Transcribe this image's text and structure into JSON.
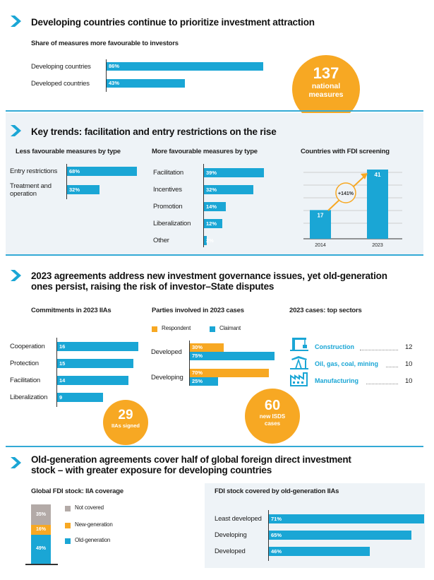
{
  "colors": {
    "accent": "#1aa6d5",
    "orange": "#f7a823",
    "grey": "#b3aaa7",
    "panel": "#eef3f7"
  },
  "s1": {
    "title": "Developing countries continue to prioritize investment attraction",
    "subtitle": "Share of measures more favourable to investors",
    "rows": [
      {
        "label": "Developing countries",
        "value": 86,
        "text": "86%"
      },
      {
        "label": "Developed countries",
        "value": 43,
        "text": "43%"
      }
    ],
    "badge_number": "137",
    "badge_line1": "national",
    "badge_line2": "measures"
  },
  "s2": {
    "title": "Key trends: facilitation and entry restrictions on the rise",
    "less": {
      "title": "Less favourable measures by type",
      "rows": [
        {
          "label": "Entry restrictions",
          "value": 68,
          "text": "68%"
        },
        {
          "label1": "Treatment and",
          "label2": "operation",
          "value": 32,
          "text": "32%"
        }
      ]
    },
    "more": {
      "title": "More favourable measures by type",
      "rows": [
        {
          "label": "Facilitation",
          "value": 39,
          "text": "39%"
        },
        {
          "label": "Incentives",
          "value": 32,
          "text": "32%"
        },
        {
          "label": "Promotion",
          "value": 14,
          "text": "14%"
        },
        {
          "label": "Liberalization",
          "value": 12,
          "text": "12%"
        },
        {
          "label": "Other",
          "value": 2,
          "text": "2%"
        }
      ]
    },
    "screening": {
      "title": "Countries with FDI screening",
      "growth": "+141%",
      "bars": [
        {
          "year": "2014",
          "value": 17,
          "text": "17"
        },
        {
          "year": "2023",
          "value": 41,
          "text": "41"
        }
      ]
    }
  },
  "s3": {
    "title_line1": "2023 agreements address new investment governance issues, yet old-generation",
    "title_line2": "ones persist, raising the risk of investor–State disputes",
    "commitments": {
      "title": "Commitments in 2023 IIAs",
      "rows": [
        {
          "label": "Cooperation",
          "value": 16,
          "text": "16"
        },
        {
          "label": "Protection",
          "value": 15,
          "text": "15"
        },
        {
          "label": "Facilitation",
          "value": 14,
          "text": "14"
        },
        {
          "label": "Liberalization",
          "value": 9,
          "text": "9"
        }
      ],
      "badge_number": "29",
      "badge_text": "IIAs signed"
    },
    "parties": {
      "title": "Parties involved in 2023 cases",
      "legend_respondent": "Respondent",
      "legend_claimant": "Claimant",
      "groups": [
        {
          "label": "Developed",
          "respondent": 30,
          "respondent_text": "30%",
          "claimant": 75,
          "claimant_text": "75%"
        },
        {
          "label": "Developing",
          "respondent": 70,
          "respondent_text": "70%",
          "claimant": 25,
          "claimant_text": "25%"
        }
      ],
      "badge_number": "60",
      "badge_line1": "new ISDS",
      "badge_line2": "cases"
    },
    "sectors": {
      "title": "2023 cases: top sectors",
      "rows": [
        {
          "label": "Construction",
          "value": "12",
          "icon": "crane-icon"
        },
        {
          "label": "Oil, gas, coal, mining",
          "value": "10",
          "icon": "oil-pump-icon"
        },
        {
          "label": "Manufacturing",
          "value": "10",
          "icon": "factory-icon"
        }
      ]
    }
  },
  "s4": {
    "title_line1": "Old-generation agreements cover half of global foreign direct investment",
    "title_line2": "stock – with greater exposure for developing countries",
    "stock": {
      "title": "Global FDI stock: IIA coverage",
      "segments": [
        {
          "name": "Not covered",
          "value": 35,
          "text": "35%"
        },
        {
          "name": "New-generation",
          "value": 16,
          "text": "16%"
        },
        {
          "name": "Old-generation",
          "value": 49,
          "text": "49%"
        }
      ]
    },
    "old": {
      "title": "FDI stock covered by old-generation IIAs",
      "rows": [
        {
          "label": "Least developed",
          "value": 71,
          "text": "71%"
        },
        {
          "label": "Developing",
          "value": 65,
          "text": "65%"
        },
        {
          "label": "Developed",
          "value": 46,
          "text": "46%"
        }
      ]
    }
  },
  "chart_data": [
    {
      "type": "bar",
      "title": "Share of measures more favourable to investors",
      "categories": [
        "Developing countries",
        "Developed countries"
      ],
      "values": [
        86,
        43
      ],
      "unit": "%"
    },
    {
      "type": "bar",
      "title": "Less favourable measures by type",
      "categories": [
        "Entry restrictions",
        "Treatment and operation"
      ],
      "values": [
        68,
        32
      ],
      "unit": "%"
    },
    {
      "type": "bar",
      "title": "More favourable measures by type",
      "categories": [
        "Facilitation",
        "Incentives",
        "Promotion",
        "Liberalization",
        "Other"
      ],
      "values": [
        39,
        32,
        14,
        12,
        2
      ],
      "unit": "%"
    },
    {
      "type": "bar",
      "title": "Countries with FDI screening",
      "categories": [
        "2014",
        "2023"
      ],
      "values": [
        17,
        41
      ]
    },
    {
      "type": "bar",
      "title": "Commitments in 2023 IIAs",
      "categories": [
        "Cooperation",
        "Protection",
        "Facilitation",
        "Liberalization"
      ],
      "values": [
        16,
        15,
        14,
        9
      ]
    },
    {
      "type": "bar",
      "title": "Parties involved in 2023 cases",
      "categories": [
        "Developed",
        "Developing"
      ],
      "series": [
        {
          "name": "Respondent",
          "values": [
            30,
            70
          ]
        },
        {
          "name": "Claimant",
          "values": [
            75,
            25
          ]
        }
      ],
      "unit": "%"
    },
    {
      "type": "table",
      "title": "2023 cases: top sectors",
      "categories": [
        "Construction",
        "Oil, gas, coal, mining",
        "Manufacturing"
      ],
      "values": [
        12,
        10,
        10
      ]
    },
    {
      "type": "bar",
      "title": "Global FDI stock: IIA coverage",
      "categories": [
        "Not covered",
        "New-generation",
        "Old-generation"
      ],
      "values": [
        35,
        16,
        49
      ],
      "unit": "%",
      "stacked": true
    },
    {
      "type": "bar",
      "title": "FDI stock covered by old-generation IIAs",
      "categories": [
        "Least developed",
        "Developing",
        "Developed"
      ],
      "values": [
        71,
        65,
        46
      ],
      "unit": "%"
    }
  ]
}
